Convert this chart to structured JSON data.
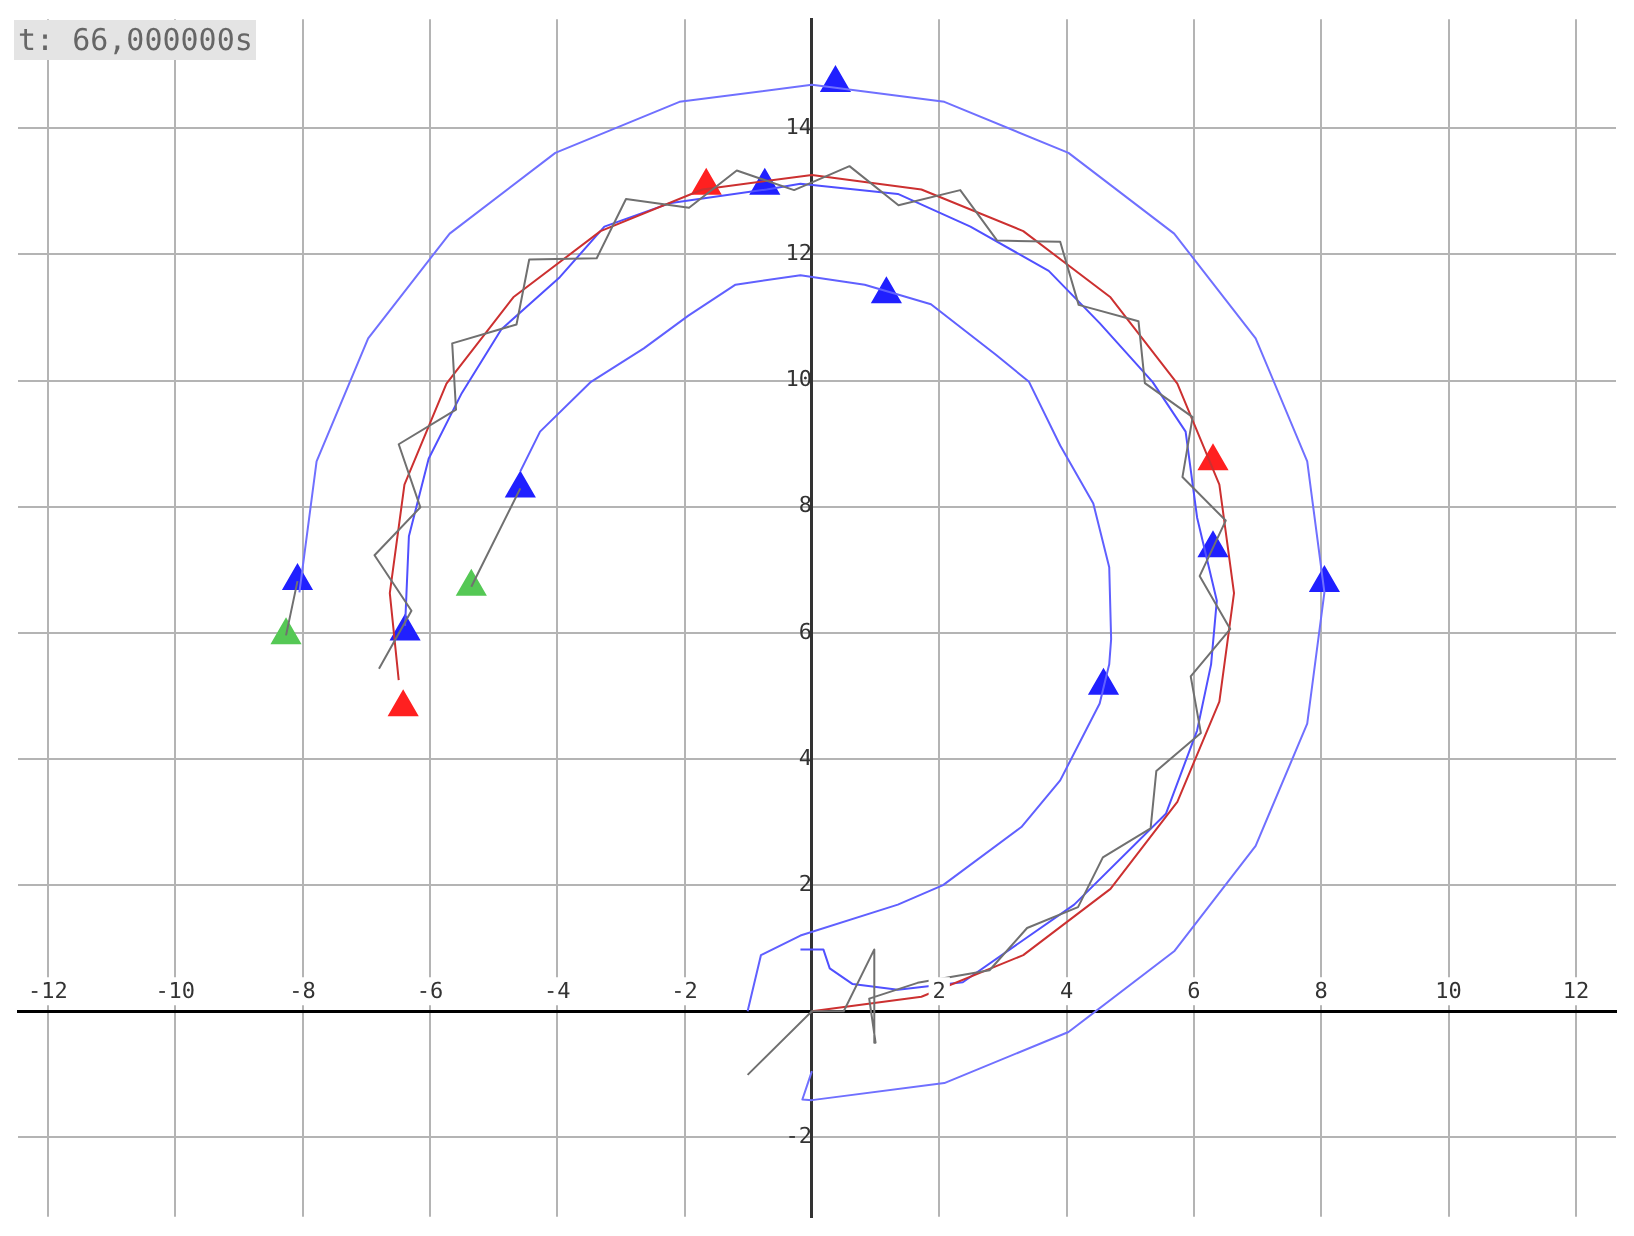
{
  "chart_data": {
    "type": "line",
    "annotations": [
      "t: 66,000000s"
    ],
    "xlim": [
      -12.47,
      12.63
    ],
    "ylim": [
      -3.26,
      15.73
    ],
    "xticks": [
      -12,
      -10,
      -8,
      -6,
      -4,
      -2,
      {
        "value": 0,
        "label": null
      },
      2,
      4,
      6,
      8,
      10,
      12
    ],
    "yticks": [
      -2,
      {
        "value": 0,
        "label": null
      },
      2,
      4,
      6,
      8,
      10,
      12,
      14
    ],
    "grid": true,
    "legend": false,
    "line_style": "solid",
    "series": [
      {
        "marker": "none",
        "color": "#7070ff",
        "x": [
          -8.05,
          -7.78,
          -6.97,
          -5.69,
          -4.03,
          -2.08,
          0,
          2.08,
          4.03,
          5.69,
          6.97,
          7.78,
          8.05,
          7.78,
          6.97,
          5.69,
          4.03,
          2.08,
          0,
          -0.15,
          -0.05,
          0
        ],
        "values": [
          6.64,
          8.72,
          10.67,
          12.33,
          13.61,
          14.42,
          14.69,
          14.42,
          13.61,
          12.33,
          10.67,
          8.72,
          6.64,
          4.56,
          2.62,
          0.95,
          -0.33,
          -1.14,
          -1.41,
          -1.4,
          -1.1,
          -0.95
        ]
      },
      {
        "marker": "none",
        "color": "#707070",
        "x": [
          -6.8,
          -6.29,
          -6.87,
          -6.15,
          -6.49,
          -5.59,
          -5.65,
          -4.64,
          -4.44,
          -3.38,
          -2.92,
          -1.93,
          -1.18,
          -0.28,
          0.59,
          1.36,
          2.33,
          2.91,
          3.9,
          4.19,
          5.13,
          5.23,
          5.98,
          5.82,
          6.5,
          6.09,
          6.57,
          5.95,
          6.11,
          5.41,
          5.32,
          4.57,
          4.18,
          3.38,
          2.79,
          1.66,
          0.9,
          1.0,
          0.98,
          0.5,
          0,
          -1.01,
          null,
          -8.08,
          -8.26,
          null,
          -4.58,
          -5.35
        ],
        "values": [
          5.43,
          6.35,
          7.23,
          7.99,
          8.99,
          9.54,
          10.59,
          10.89,
          11.92,
          11.94,
          12.88,
          12.74,
          13.33,
          13.02,
          13.4,
          12.78,
          13.02,
          12.22,
          12.2,
          11.2,
          10.94,
          9.96,
          9.42,
          8.47,
          7.78,
          6.9,
          6.06,
          5.31,
          4.41,
          3.81,
          2.9,
          2.44,
          1.65,
          1.32,
          0.65,
          0.45,
          0.2,
          -0.5,
          0.98,
          0,
          0,
          -1.01,
          null,
          6.82,
          5.96,
          null,
          8.29,
          6.73
        ]
      },
      {
        "marker": "none",
        "color": "#cc3030",
        "x": [
          0,
          1.72,
          3.32,
          4.69,
          5.74,
          6.4,
          6.63,
          6.4,
          5.74,
          4.69,
          3.32,
          1.72,
          0,
          -1.72,
          -3.32,
          -4.69,
          -5.74,
          -6.4,
          -6.63,
          -6.49
        ],
        "values": [
          0,
          0.23,
          0.89,
          1.94,
          3.32,
          4.91,
          6.63,
          8.35,
          9.95,
          11.32,
          12.37,
          13.03,
          13.26,
          13.03,
          12.37,
          11.32,
          9.95,
          8.35,
          6.63,
          5.25
        ]
      },
      {
        "marker": "none",
        "color": "#5050ff",
        "x": [
          -6.39,
          -6.33,
          -6.02,
          -5.5,
          -4.88,
          -3.96,
          -3.26,
          -2.24,
          -0.71,
          -0.18,
          1.35,
          2.49,
          3.72,
          4.52,
          5.35,
          5.87,
          6.05,
          6.36,
          6.27,
          6.05,
          5.56,
          4.12,
          2.37,
          1.35,
          0.64,
          0.28,
          0.18,
          -0.18
        ],
        "values": [
          6.11,
          7.53,
          8.76,
          9.8,
          10.81,
          11.64,
          12.44,
          12.81,
          13.03,
          13.12,
          12.96,
          12.44,
          11.74,
          10.91,
          9.98,
          9.19,
          7.83,
          6.51,
          5.5,
          4.45,
          3.13,
          1.69,
          0.46,
          0.34,
          0.43,
          0.68,
          0.98,
          0.98
        ]
      },
      {
        "marker": "none",
        "color": "#6060ff",
        "x": [
          -4.58,
          -4.27,
          -3.47,
          -2.64,
          -1.94,
          -1.2,
          -0.18,
          0.83,
          1.87,
          2.89,
          3.41,
          3.9,
          4.42,
          4.67,
          4.7,
          4.67,
          4.52,
          3.9,
          3.29,
          2.06,
          1.35,
          -0.18,
          -0.8,
          -1.01
        ],
        "values": [
          8.56,
          9.19,
          9.98,
          10.51,
          11.03,
          11.52,
          11.67,
          11.52,
          11.21,
          10.41,
          9.98,
          8.97,
          8.05,
          7.04,
          5.9,
          5.5,
          4.88,
          3.66,
          2.92,
          2.0,
          1.69,
          1.2,
          0.89,
          0
        ]
      },
      {
        "type": "scatter",
        "marker": "triangle",
        "color": "#2020ff",
        "x": [
          -8.08,
          0.37,
          8.05,
          -4.58,
          1.17,
          4.58,
          -6.39,
          -0.74,
          6.3
        ],
        "values": [
          6.82,
          14.72,
          6.79,
          8.29,
          11.37,
          5.16,
          6.02,
          13.09,
          7.34
        ]
      },
      {
        "type": "scatter",
        "marker": "triangle",
        "color": "#ff2020",
        "x": [
          -1.66,
          6.3,
          -6.42
        ],
        "values": [
          13.09,
          8.72,
          4.82
        ]
      },
      {
        "type": "scatter",
        "marker": "triangle",
        "color": "#55c855",
        "x": [
          -8.26,
          -5.35
        ],
        "values": [
          5.96,
          6.73
        ]
      }
    ]
  }
}
